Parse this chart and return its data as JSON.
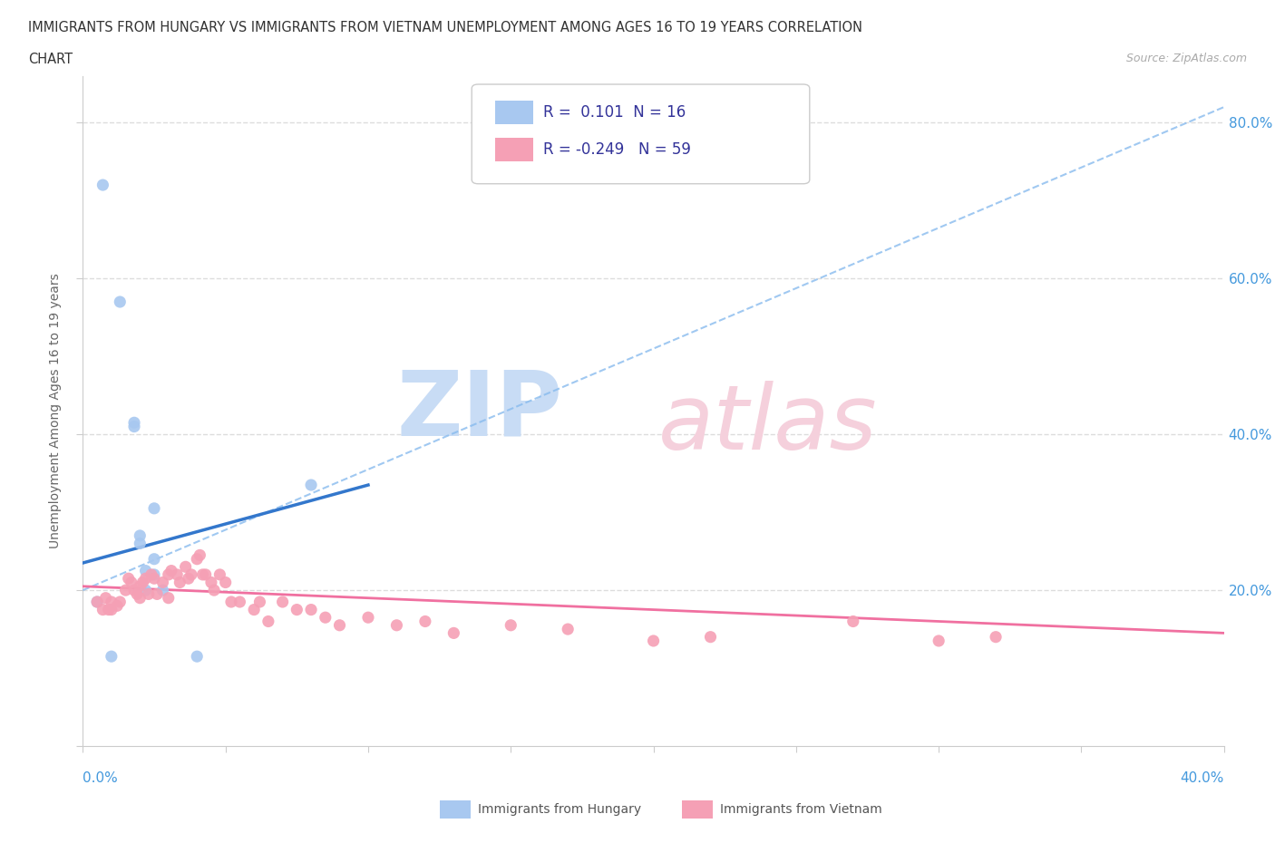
{
  "title_line1": "IMMIGRANTS FROM HUNGARY VS IMMIGRANTS FROM VIETNAM UNEMPLOYMENT AMONG AGES 16 TO 19 YEARS CORRELATION",
  "title_line2": "CHART",
  "source": "Source: ZipAtlas.com",
  "legend_hungary": "Immigrants from Hungary",
  "legend_vietnam": "Immigrants from Vietnam",
  "hungary_color": "#a8c8f0",
  "vietnam_color": "#f5a0b5",
  "hungary_line_color": "#3377cc",
  "vietnam_line_color": "#f070a0",
  "dashed_line_color": "#88bbee",
  "xlim": [
    0.0,
    0.4
  ],
  "ylim": [
    0.0,
    0.86
  ],
  "yticks": [
    0.0,
    0.2,
    0.4,
    0.6,
    0.8
  ],
  "ytick_labels": [
    "",
    "20.0%",
    "40.0%",
    "60.0%",
    "80.0%"
  ],
  "xticks": [
    0.0,
    0.05,
    0.1,
    0.15,
    0.2,
    0.25,
    0.3,
    0.35,
    0.4
  ],
  "R_hungary": 0.101,
  "N_hungary": 16,
  "R_vietnam": -0.249,
  "N_vietnam": 59,
  "hungary_x": [
    0.007,
    0.013,
    0.018,
    0.018,
    0.02,
    0.02,
    0.022,
    0.022,
    0.025,
    0.025,
    0.025,
    0.028,
    0.04,
    0.005,
    0.01,
    0.08
  ],
  "hungary_y": [
    0.72,
    0.57,
    0.415,
    0.41,
    0.27,
    0.26,
    0.225,
    0.2,
    0.305,
    0.24,
    0.22,
    0.2,
    0.115,
    0.185,
    0.115,
    0.335
  ],
  "vietnam_x": [
    0.005,
    0.007,
    0.008,
    0.009,
    0.01,
    0.01,
    0.012,
    0.013,
    0.015,
    0.016,
    0.017,
    0.018,
    0.019,
    0.02,
    0.02,
    0.021,
    0.022,
    0.023,
    0.024,
    0.025,
    0.026,
    0.028,
    0.03,
    0.03,
    0.031,
    0.033,
    0.034,
    0.036,
    0.037,
    0.038,
    0.04,
    0.041,
    0.042,
    0.043,
    0.045,
    0.046,
    0.048,
    0.05,
    0.052,
    0.055,
    0.06,
    0.062,
    0.065,
    0.07,
    0.075,
    0.08,
    0.085,
    0.09,
    0.1,
    0.11,
    0.12,
    0.13,
    0.15,
    0.17,
    0.2,
    0.22,
    0.27,
    0.3,
    0.32
  ],
  "vietnam_y": [
    0.185,
    0.175,
    0.19,
    0.175,
    0.185,
    0.175,
    0.18,
    0.185,
    0.2,
    0.215,
    0.21,
    0.2,
    0.195,
    0.205,
    0.19,
    0.21,
    0.215,
    0.195,
    0.22,
    0.215,
    0.195,
    0.21,
    0.22,
    0.19,
    0.225,
    0.22,
    0.21,
    0.23,
    0.215,
    0.22,
    0.24,
    0.245,
    0.22,
    0.22,
    0.21,
    0.2,
    0.22,
    0.21,
    0.185,
    0.185,
    0.175,
    0.185,
    0.16,
    0.185,
    0.175,
    0.175,
    0.165,
    0.155,
    0.165,
    0.155,
    0.16,
    0.145,
    0.155,
    0.15,
    0.135,
    0.14,
    0.16,
    0.135,
    0.14
  ],
  "dashed_line_x": [
    0.0,
    0.4
  ],
  "dashed_line_y": [
    0.2,
    0.82
  ],
  "hungary_trend_x": [
    0.0,
    0.1
  ],
  "hungary_trend_y": [
    0.235,
    0.335
  ],
  "vietnam_trend_x": [
    0.0,
    0.4
  ],
  "vietnam_trend_y": [
    0.205,
    0.145
  ]
}
